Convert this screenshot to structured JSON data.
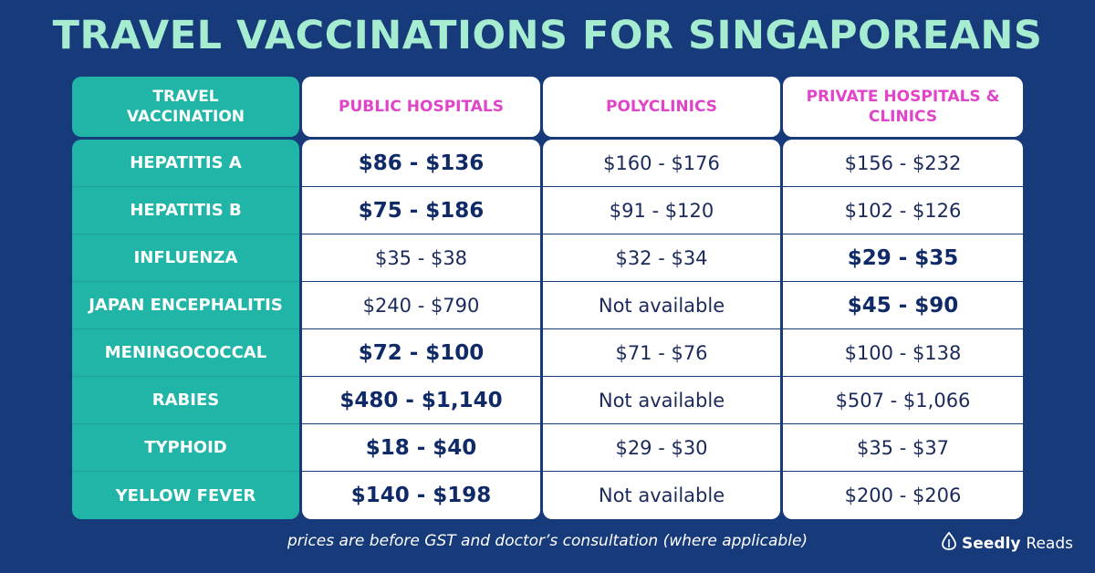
{
  "title": "TRAVEL VACCINATIONS FOR SINGAPOREANS",
  "headers": {
    "vaccination": "TRAVEL VACCINATION",
    "public": "PUBLIC HOSPITALS",
    "poly": "POLYCLINICS",
    "private": "PRIVATE HOSPITALS & CLINICS"
  },
  "rows": [
    {
      "name": "HEPATITIS A",
      "public": "$86 - $136",
      "poly": "$160 - $176",
      "private": "$156 - $232"
    },
    {
      "name": "HEPATITIS B",
      "public": "$75 - $186",
      "poly": "$91 - $120",
      "private": "$102 - $126"
    },
    {
      "name": "INFLUENZA",
      "public": "$35 - $38",
      "poly": "$32 - $34",
      "private": "$29 - $35"
    },
    {
      "name": "JAPAN ENCEPHALITIS",
      "public": "$240 - $790",
      "poly": "Not available",
      "private": "$45 - $90"
    },
    {
      "name": "MENINGOCOCCAL",
      "public": "$72 - $100",
      "poly": "$71 - $76",
      "private": "$100 - $138"
    },
    {
      "name": "RABIES",
      "public": "$480 - $1,140",
      "poly": "Not available",
      "private": "$507 - $1,066"
    },
    {
      "name": "TYPHOID",
      "public": "$18 - $40",
      "poly": "$29 - $30",
      "private": "$35 - $37"
    },
    {
      "name": "YELLOW FEVER",
      "public": "$140 - $198",
      "poly": "Not available",
      "private": "$200 - $206"
    }
  ],
  "footnote": "prices are before GST and doctor’s consultation (where applicable)",
  "brand": {
    "part1": "Seedly",
    "part2": "Reads"
  },
  "colors": {
    "background": "#163a7a",
    "title": "#a6ecd0",
    "teal": "#21b5a8",
    "header_pink": "#e044c8",
    "text_dark": "#1b2a5a"
  }
}
